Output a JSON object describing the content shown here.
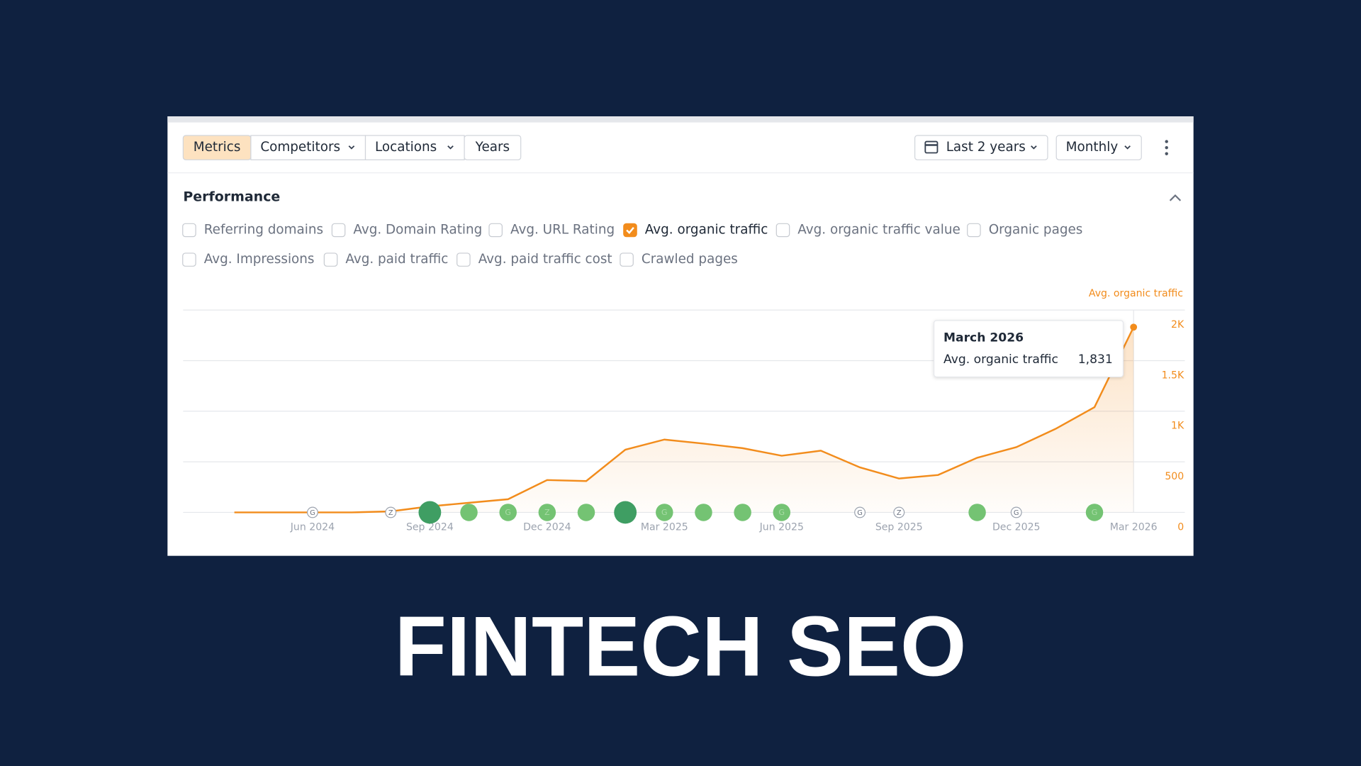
{
  "toolbar": {
    "tabs": [
      "Metrics",
      "Competitors",
      "Locations",
      "Years"
    ],
    "date_range": "Last 2 years",
    "interval": "Monthly"
  },
  "performance": {
    "title": "Performance",
    "metrics": [
      {
        "label": "Referring domains",
        "checked": false
      },
      {
        "label": "Avg. Domain Rating",
        "checked": false
      },
      {
        "label": "Avg. URL Rating",
        "checked": false
      },
      {
        "label": "Avg. organic traffic",
        "checked": true
      },
      {
        "label": "Avg. organic traffic value",
        "checked": false
      },
      {
        "label": "Organic pages",
        "checked": false
      },
      {
        "label": "Avg. Impressions",
        "checked": false
      },
      {
        "label": "Avg. paid traffic",
        "checked": false
      },
      {
        "label": "Avg. paid traffic cost",
        "checked": false
      },
      {
        "label": "Crawled pages",
        "checked": false
      }
    ]
  },
  "chart_data": {
    "type": "area",
    "y_axis_label": "Avg. organic traffic",
    "categories": [
      null,
      null,
      "Jun 2024",
      null,
      null,
      "Sep 2024",
      null,
      null,
      "Dec 2024",
      null,
      null,
      "Mar 2025",
      null,
      null,
      "Jun 2025",
      null,
      null,
      "Sep 2025",
      null,
      null,
      "Dec 2025",
      null,
      null,
      "Mar 2026"
    ],
    "series": [
      {
        "name": "Avg. organic traffic",
        "color": "#f28c1c",
        "values": [
          0,
          0,
          0,
          0,
          10,
          60,
          95,
          130,
          320,
          310,
          620,
          720,
          680,
          635,
          560,
          610,
          445,
          335,
          370,
          540,
          645,
          825,
          1040,
          1831
        ]
      }
    ],
    "ylim": [
      0,
      2000
    ],
    "yticks": [
      0,
      500,
      {
        "value": 1000,
        "label": "1K"
      },
      {
        "value": 1500,
        "label": "1.5K"
      },
      {
        "value": 2000,
        "label": "2K"
      }
    ],
    "grid": true,
    "event_markers": [
      null,
      null,
      {
        "label": "G",
        "color": "#9ca3af"
      },
      null,
      {
        "label": "Z",
        "color": "#9ca3af"
      },
      {
        "color": "#3f9e63"
      },
      {
        "color": "#74c373"
      },
      {
        "label": "G",
        "color": "#74c373"
      },
      {
        "label": "Z",
        "color": "#74c373"
      },
      {
        "color": "#74c373"
      },
      {
        "color": "#3f9e63"
      },
      {
        "label": "G",
        "color": "#74c373"
      },
      {
        "color": "#74c373"
      },
      {
        "color": "#74c373"
      },
      {
        "label": "G",
        "color": "#74c373"
      },
      null,
      {
        "label": "G",
        "color": "#9ca3af"
      },
      {
        "label": "Z",
        "color": "#9ca3af"
      },
      null,
      {
        "color": "#74c373"
      },
      {
        "label": "G",
        "color": "#9ca3af"
      },
      null,
      {
        "label": "G",
        "color": "#74c373"
      },
      null
    ],
    "tooltip": {
      "title": "March 2026",
      "label": "Avg. organic traffic",
      "value": "1,831"
    }
  },
  "headline": "FINTECH SEO"
}
